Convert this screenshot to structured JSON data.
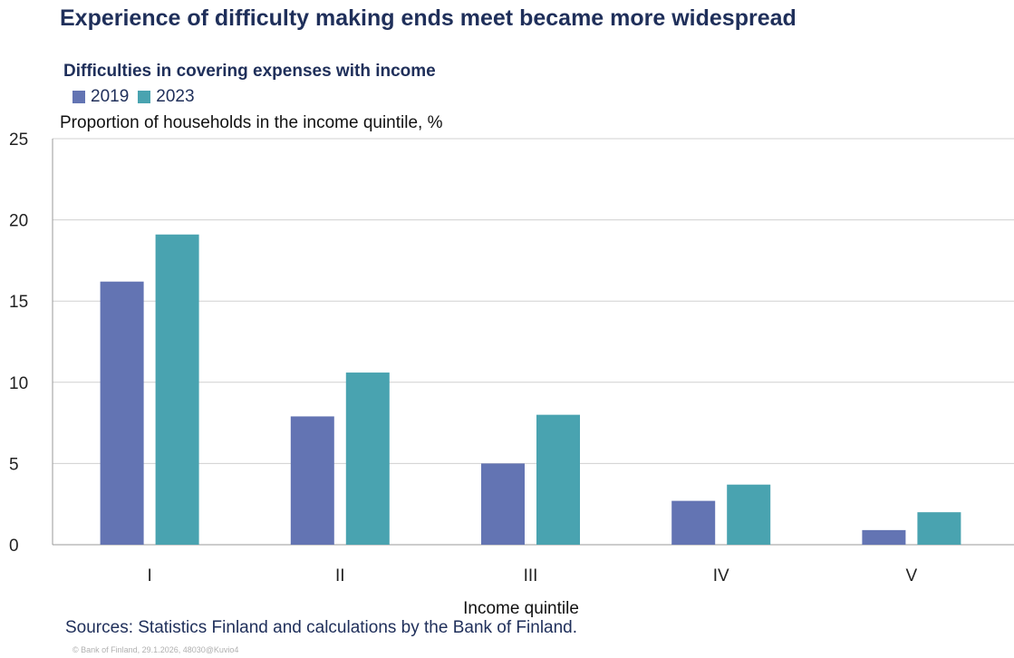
{
  "title": "Experience of difficulty making ends meet became more widespread",
  "subtitle": "Difficulties in covering expenses with income",
  "sources": "Sources: Statistics Finland and calculations by the Bank of Finland.",
  "copyright": "© Bank of Finland, 29.1.2026, 48030@Kuvio4",
  "colors": {
    "series_2019": "#6374b3",
    "series_2023": "#49a3b0",
    "grid": "#d0d0d0",
    "axis": "#9a9a9a"
  },
  "chart_data": {
    "type": "bar",
    "categories": [
      "I",
      "II",
      "III",
      "IV",
      "V"
    ],
    "series": [
      {
        "name": "2019",
        "values": [
          16.2,
          7.9,
          5.0,
          2.7,
          0.9
        ]
      },
      {
        "name": "2023",
        "values": [
          19.1,
          10.6,
          8.0,
          3.7,
          2.0
        ]
      }
    ],
    "title": "Experience of difficulty making ends meet became more widespread",
    "ylabel": "Proportion of households in the income quintile, %",
    "xlabel": "Income quintile",
    "ylim": [
      0,
      25
    ],
    "yticks": [
      0,
      5,
      10,
      15,
      20,
      25
    ],
    "grid": true,
    "legend": "top-left"
  }
}
